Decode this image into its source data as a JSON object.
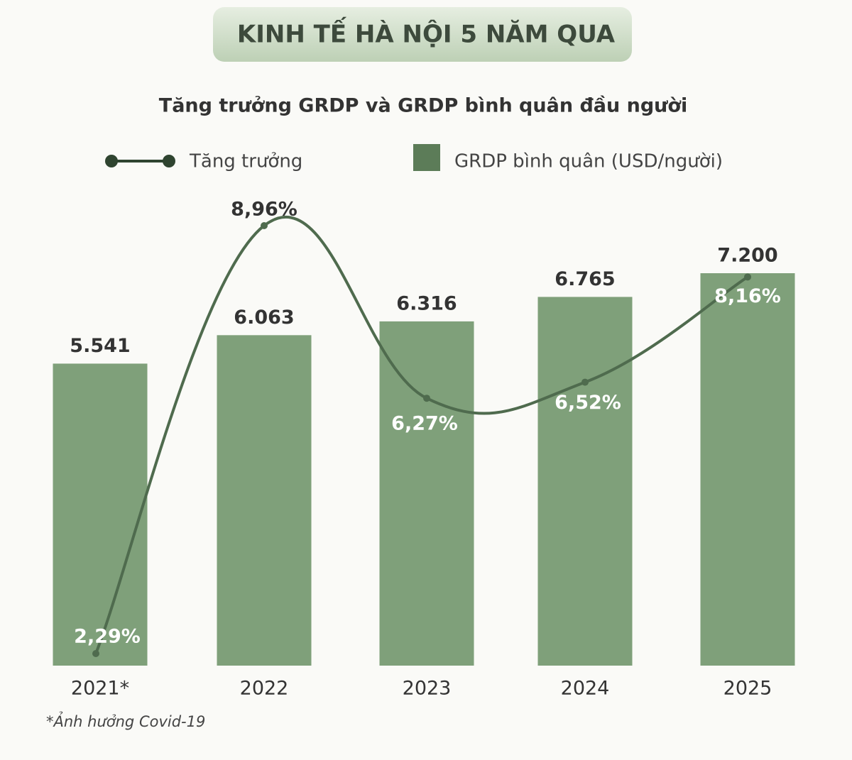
{
  "chart_data": {
    "type": "bar",
    "title": "KINH TẾ HÀ NỘI 5 NĂM QUA",
    "subtitle": "Tăng trưởng GRDP và GRDP bình quân đầu người",
    "footnote": "*Ảnh hưởng Covid-19",
    "categories": [
      "2021*",
      "2022",
      "2023",
      "2024",
      "2025"
    ],
    "series": [
      {
        "name": "GRDP bình quân (USD/người)",
        "type": "bar",
        "color": "#7fa07a",
        "legend_color": "#5c7c58",
        "values": [
          5541,
          6063,
          6316,
          6765,
          7200
        ],
        "value_labels": [
          "5.541",
          "6.063",
          "6.316",
          "6.765",
          "7.200"
        ]
      },
      {
        "name": "Tăng trưởng",
        "type": "line",
        "axis": "y2",
        "color": "#4f6b4e",
        "values": [
          2.29,
          8.96,
          6.27,
          6.52,
          8.16
        ],
        "value_labels": [
          "2,29%",
          "8,96%",
          "6,27%",
          "6,52%",
          "8,16%"
        ]
      }
    ]
  }
}
